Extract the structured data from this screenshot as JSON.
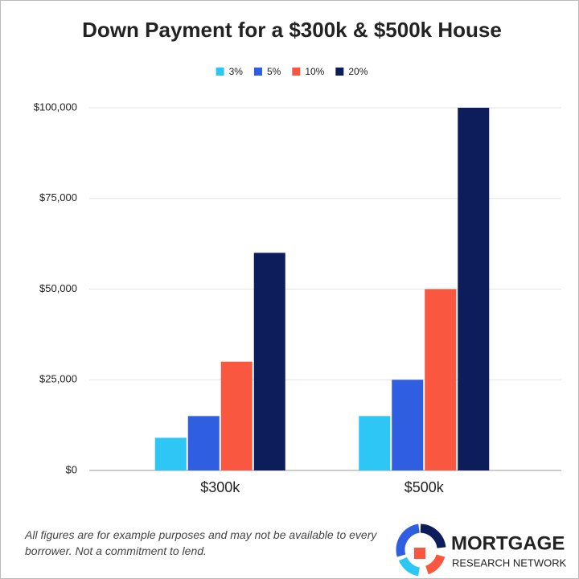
{
  "chart_data": {
    "type": "bar",
    "title": "Down Payment for a $300k & $500k House",
    "categories": [
      "$300k",
      "$500k"
    ],
    "series": [
      {
        "name": "3%",
        "color": "#2ec7f5",
        "values": [
          9000,
          15000
        ]
      },
      {
        "name": "5%",
        "color": "#2f5fe0",
        "values": [
          15000,
          25000
        ]
      },
      {
        "name": "10%",
        "color": "#f9573f",
        "values": [
          30000,
          50000
        ]
      },
      {
        "name": "20%",
        "color": "#0d1d5c",
        "values": [
          60000,
          100000
        ]
      }
    ],
    "ylim": [
      0,
      100000
    ],
    "yticks": [
      {
        "value": 0,
        "label": "$0"
      },
      {
        "value": 25000,
        "label": "$25,000"
      },
      {
        "value": 50000,
        "label": "$50,000"
      },
      {
        "value": 75000,
        "label": "$75,000"
      },
      {
        "value": 100000,
        "label": "$100,000"
      }
    ],
    "grid": true,
    "legend": "top",
    "footnote": "All figures are for example purposes and may not be available to every borrower. Not a commitment to lend.",
    "brand": {
      "name": "MORTGAGE",
      "tagline": "RESEARCH NETWORK"
    }
  }
}
